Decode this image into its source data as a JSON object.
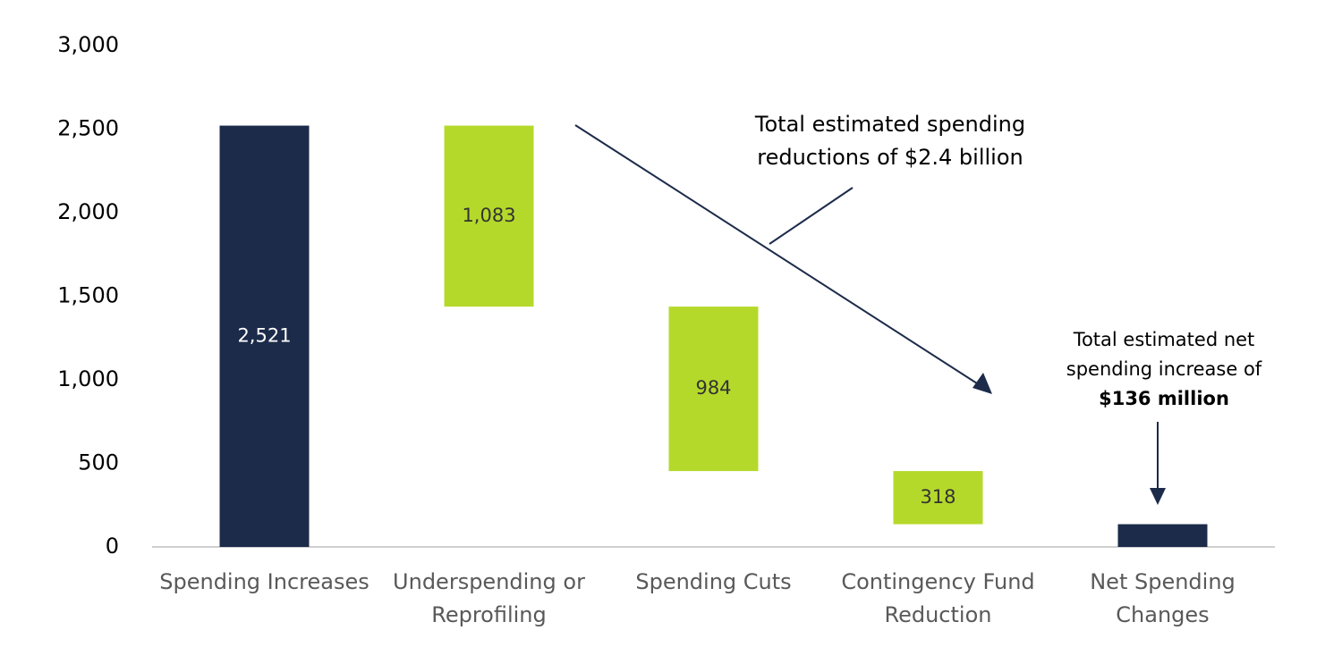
{
  "chart_data": {
    "type": "waterfall",
    "categories": [
      [
        "Spending Increases"
      ],
      [
        "Underspending or",
        "Reprofiling"
      ],
      [
        "Spending Cuts"
      ],
      [
        "Contingency Fund",
        "Reduction"
      ],
      [
        "Net Spending",
        "Changes"
      ]
    ],
    "values": [
      2521,
      1083,
      984,
      318,
      136
    ],
    "value_labels": [
      "2,521",
      "1,083",
      "984",
      "318",
      null
    ],
    "measure": [
      "absolute",
      "decrease",
      "decrease",
      "decrease",
      "total"
    ],
    "colors": {
      "absolute": "#1c2b4a",
      "decrease": "#b5d92b",
      "total": "#1c2b4a"
    },
    "ylim": [
      0,
      3000
    ],
    "yticks": [
      0,
      500,
      {
        "value": 1000,
        "label": "1,000"
      },
      {
        "value": 1500,
        "label": "1,500"
      },
      {
        "value": 2000,
        "label": "2,000"
      },
      {
        "value": 2500,
        "label": "2,500"
      },
      {
        "value": 3000,
        "label": "3,000"
      }
    ],
    "grid": false,
    "annotations": [
      {
        "lines": [
          "Total estimated spending",
          "reductions of $2.4 billion"
        ]
      },
      {
        "lines": [
          "Total estimated net",
          "spending increase of",
          "$136 million"
        ]
      }
    ]
  }
}
